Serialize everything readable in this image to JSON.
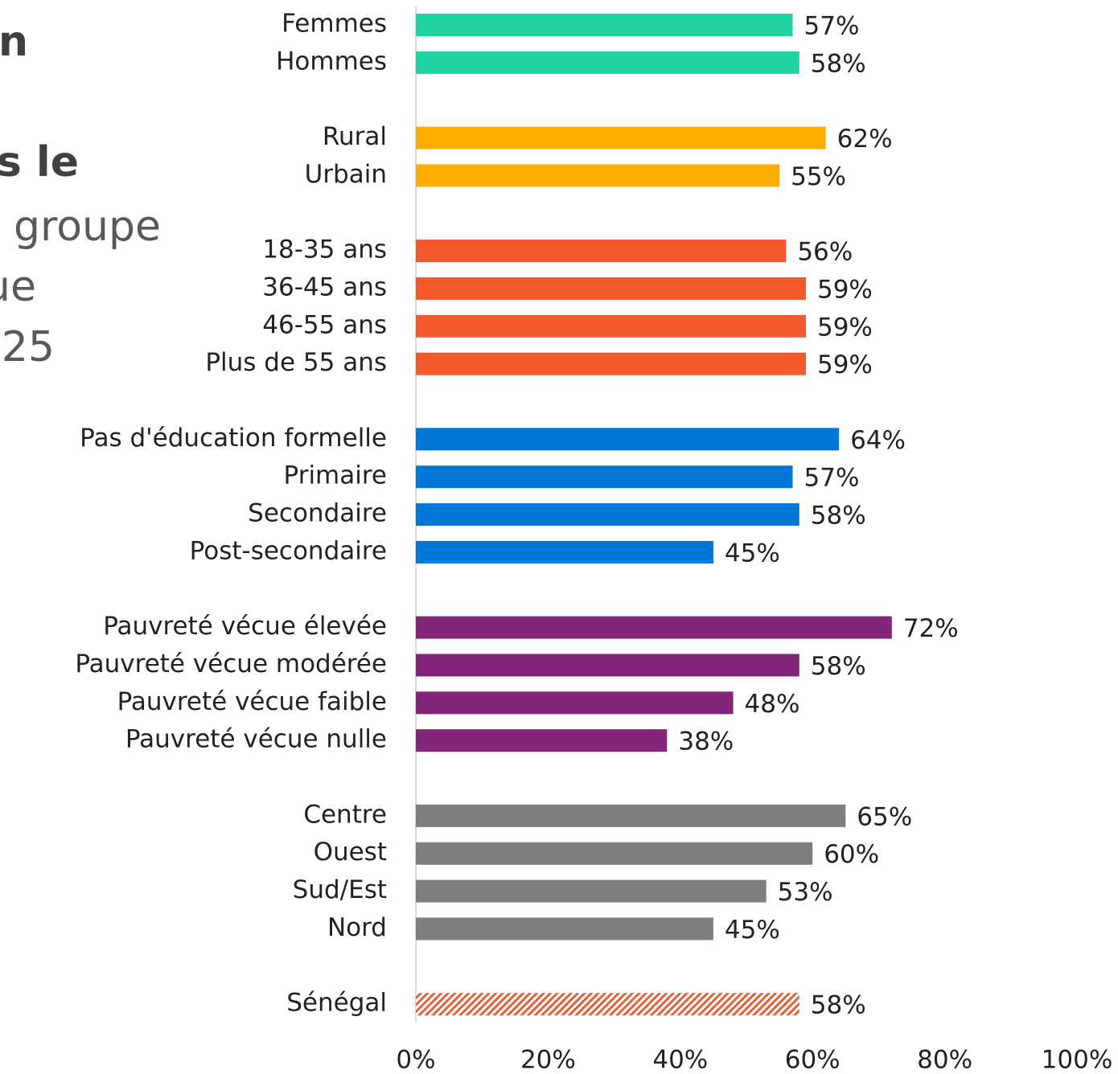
{
  "chart_data": {
    "type": "hbar",
    "annotations": [
      "n",
      "s le",
      "groupe",
      "ue",
      "25"
    ],
    "categories": [
      "Femmes",
      "Hommes",
      null,
      "Rural",
      "Urbain",
      null,
      "18-35 ans",
      "36-45 ans",
      "46-55 ans",
      "Plus de 55 ans",
      null,
      "Pas d'éducation formelle",
      "Primaire",
      "Secondaire",
      "Post-secondaire",
      null,
      "Pauvreté vécue élevée",
      "Pauvreté vécue modérée",
      "Pauvreté vécue faible",
      "Pauvreté vécue nulle",
      null,
      "Centre",
      "Ouest",
      "Sud/Est",
      "Nord",
      null,
      "Sénégal"
    ],
    "values": [
      57,
      58,
      null,
      62,
      55,
      null,
      56,
      59,
      59,
      59,
      null,
      64,
      57,
      58,
      45,
      null,
      72,
      58,
      48,
      38,
      null,
      65,
      60,
      53,
      45,
      null,
      58
    ],
    "value_labels": [
      "57%",
      "58%",
      null,
      "62%",
      "55%",
      null,
      "56%",
      "59%",
      "59%",
      "59%",
      null,
      "64%",
      "57%",
      "58%",
      "45%",
      null,
      "72%",
      "58%",
      "48%",
      "38%",
      null,
      "65%",
      "60%",
      "53%",
      "45%",
      null,
      "58%"
    ],
    "colors": [
      "#22d1a2",
      "#22d1a2",
      null,
      "#ffab00",
      "#ffab00",
      null,
      "#f1582c",
      "#f1582c",
      "#f1582c",
      "#f1582c",
      null,
      "#0078d7",
      "#0078d7",
      "#0078d7",
      "#0078d7",
      null,
      "#84257a",
      "#84257a",
      "#84257a",
      "#84257a",
      null,
      "#7f7f7f",
      "#7f7f7f",
      "#7f7f7f",
      "#7f7f7f",
      null,
      "#e0623a"
    ],
    "hatched": [
      "Sénégal"
    ],
    "xlim": [
      0,
      100
    ],
    "xticks": [
      {
        "value": 0,
        "label": "0%"
      },
      {
        "value": 20,
        "label": "20%"
      },
      {
        "value": 40,
        "label": "40%"
      },
      {
        "value": 60,
        "label": "60%"
      },
      {
        "value": 80,
        "label": "80%"
      },
      {
        "value": 100,
        "label": "100%"
      }
    ]
  }
}
